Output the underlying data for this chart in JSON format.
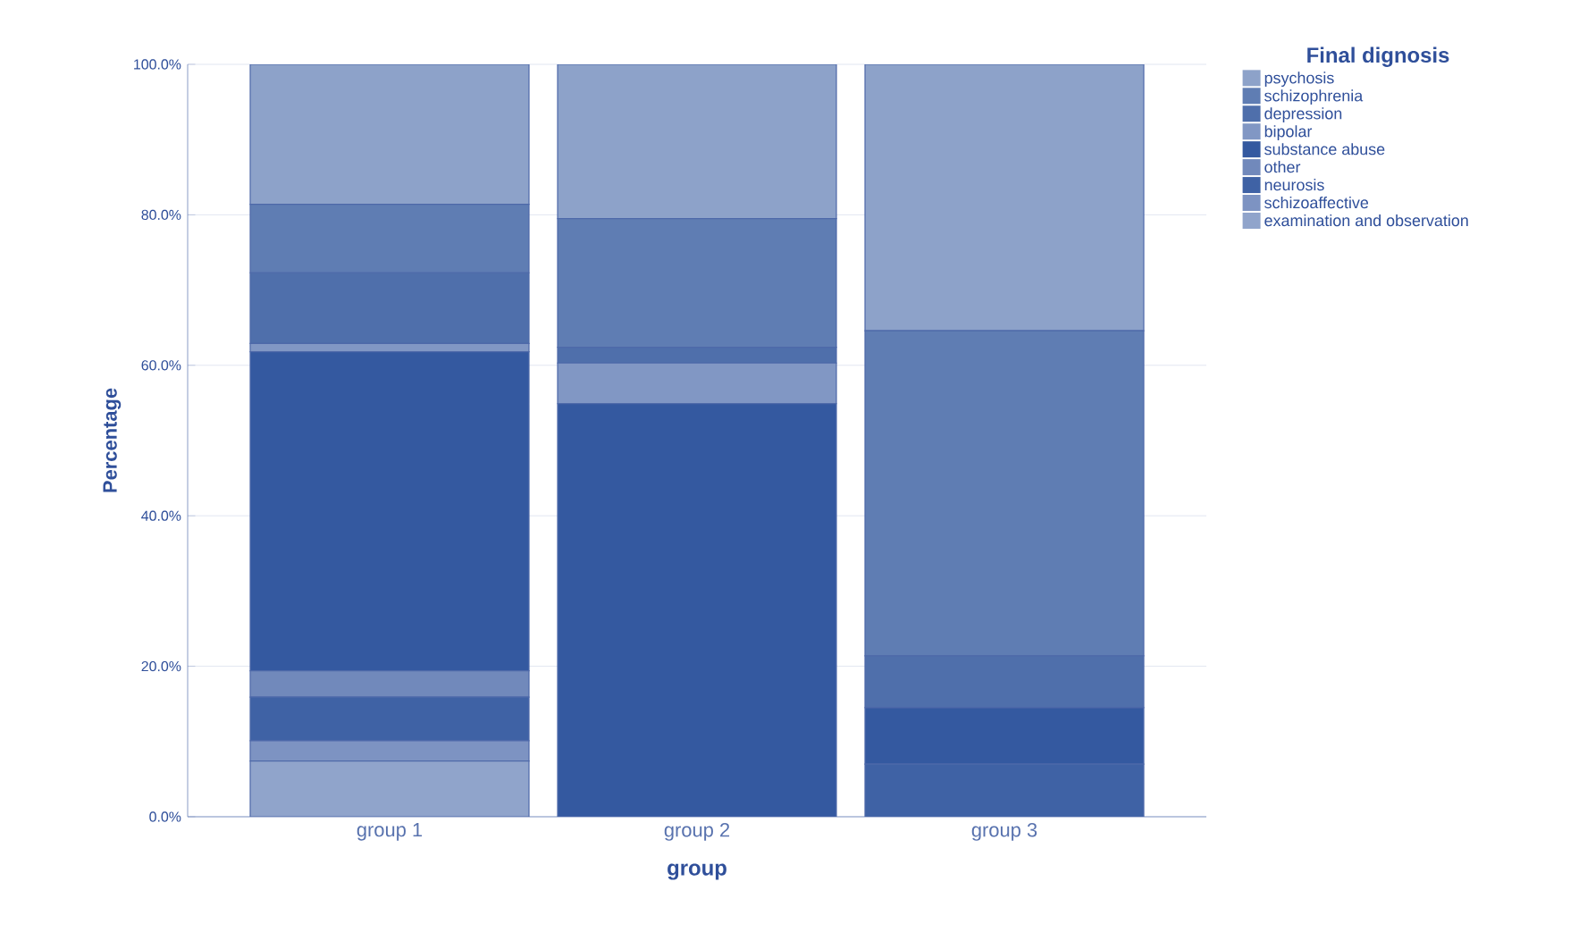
{
  "chart_data": {
    "type": "bar",
    "stacked": true,
    "xlabel": "group",
    "ylabel": "Percentage",
    "legend_title": "Final dignosis",
    "legend": "top right",
    "grid": "y",
    "categories": [
      "group 1",
      "group 2",
      "group 3"
    ],
    "ylim": [
      0,
      100
    ],
    "yticks": [
      {
        "value": 0,
        "label": "0.0%"
      },
      {
        "value": 20,
        "label": "20.0%"
      },
      {
        "value": 40,
        "label": "40.0%"
      },
      {
        "value": 60,
        "label": "60.0%"
      },
      {
        "value": 80,
        "label": "80.0%"
      },
      {
        "value": 100,
        "label": "100.0%"
      }
    ],
    "series": [
      {
        "name": "examination and observation",
        "color": "#90a4cb",
        "values": [
          7.4,
          0,
          0
        ]
      },
      {
        "name": "schizoaffective",
        "color": "#7d93c2",
        "values": [
          2.7,
          0,
          0
        ]
      },
      {
        "name": "neurosis",
        "color": "#3f62a5",
        "values": [
          5.8,
          0,
          7.0
        ]
      },
      {
        "name": "other",
        "color": "#7189bb",
        "values": [
          3.5,
          0,
          0
        ]
      },
      {
        "name": "substance abuse",
        "color": "#3459a0",
        "values": [
          42.4,
          54.9,
          7.5
        ]
      },
      {
        "name": "bipolar",
        "color": "#8197c4",
        "values": [
          1.1,
          5.4,
          0
        ]
      },
      {
        "name": "depression",
        "color": "#4f6fab",
        "values": [
          9.4,
          2.1,
          6.9
        ]
      },
      {
        "name": "schizophrenia",
        "color": "#5f7db3",
        "values": [
          9.1,
          17.1,
          43.2
        ]
      },
      {
        "name": "psychosis",
        "color": "#8da2c9",
        "values": [
          18.6,
          20.5,
          35.4
        ]
      }
    ]
  }
}
